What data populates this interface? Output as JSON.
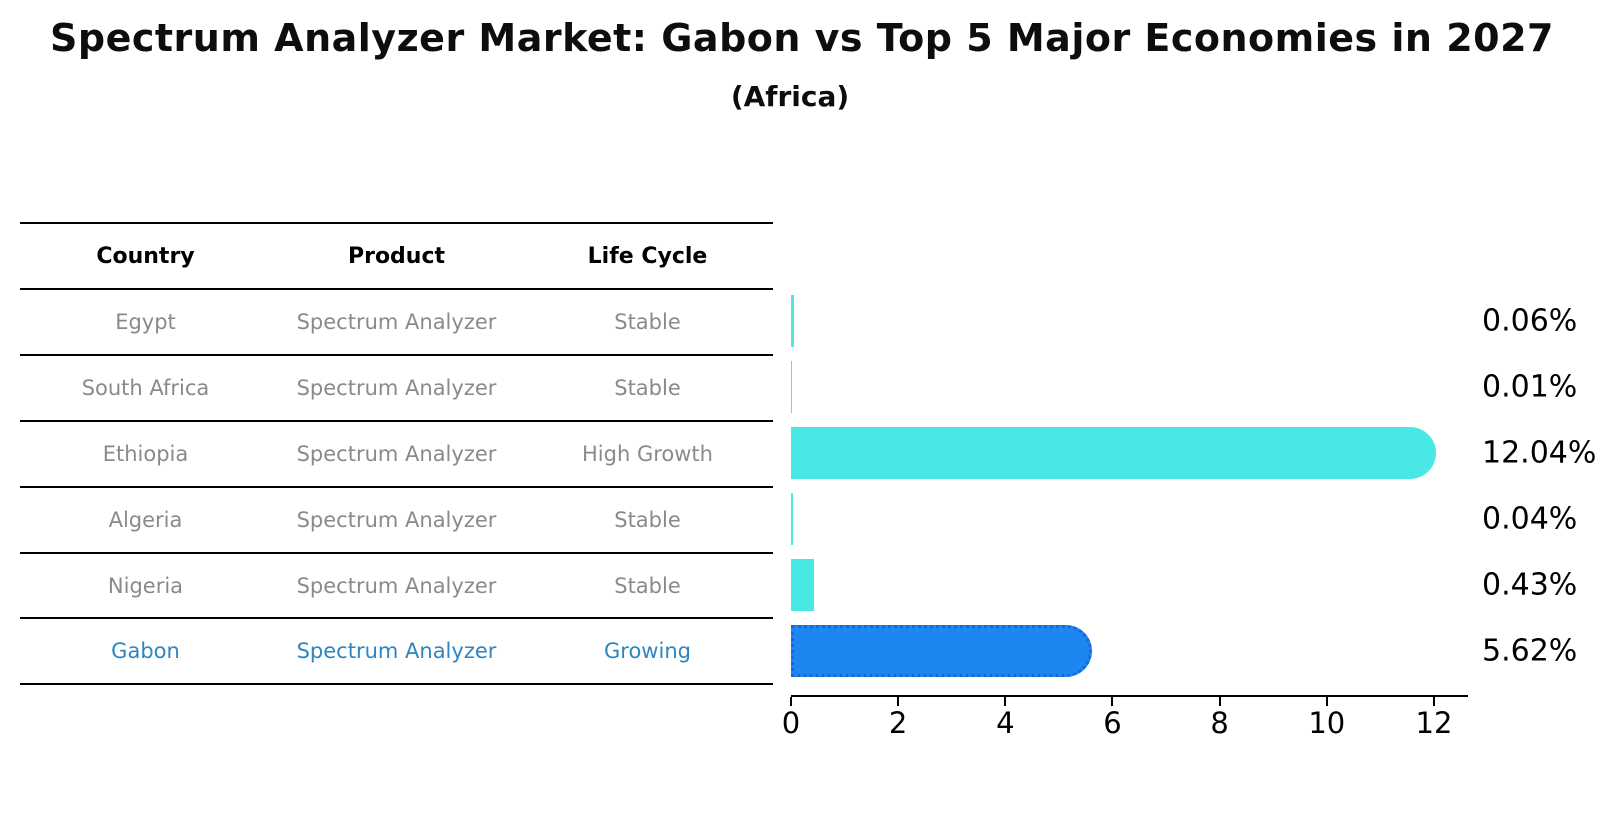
{
  "title": "Spectrum Analyzer Market: Gabon vs Top 5 Major Economies in 2027",
  "subtitle": "(Africa)",
  "colors": {
    "bar": "#4AE8E4",
    "highlight_bar": "#1E86F0",
    "highlight_bar_border": "#1668D9",
    "highlight_text": "#2E86C1",
    "row_text": "#8A8A8A",
    "text": "#000000"
  },
  "table": {
    "columns": [
      "Country",
      "Product",
      "Life Cycle"
    ],
    "rows": [
      {
        "country": "Egypt",
        "product": "Spectrum Analyzer",
        "life_cycle": "Stable",
        "highlight": false
      },
      {
        "country": "South Africa",
        "product": "Spectrum Analyzer",
        "life_cycle": "Stable",
        "highlight": false
      },
      {
        "country": "Ethiopia",
        "product": "Spectrum Analyzer",
        "life_cycle": "High Growth",
        "highlight": false
      },
      {
        "country": "Algeria",
        "product": "Spectrum Analyzer",
        "life_cycle": "Stable",
        "highlight": false
      },
      {
        "country": "Nigeria",
        "product": "Spectrum Analyzer",
        "life_cycle": "Stable",
        "highlight": false
      },
      {
        "country": "Gabon",
        "product": "Spectrum Analyzer",
        "life_cycle": "Growing",
        "highlight": true
      }
    ]
  },
  "chart_data": {
    "type": "bar",
    "orientation": "horizontal",
    "title": "Spectrum Analyzer Market: Gabon vs Top 5 Major Economies in 2027",
    "subtitle": "(Africa)",
    "categories": [
      "Egypt",
      "South Africa",
      "Ethiopia",
      "Algeria",
      "Nigeria",
      "Gabon"
    ],
    "values": [
      0.06,
      0.01,
      12.04,
      0.04,
      0.43,
      5.62
    ],
    "value_labels": [
      "0.06%",
      "0.01%",
      "12.04%",
      "0.04%",
      "0.43%",
      "5.62%"
    ],
    "highlight_index": 5,
    "xlabel": "",
    "ylabel": "",
    "xticks": [
      0,
      2,
      4,
      6,
      8,
      10,
      12
    ],
    "xlim": [
      0,
      12.65
    ],
    "grid": false,
    "legend": false
  }
}
